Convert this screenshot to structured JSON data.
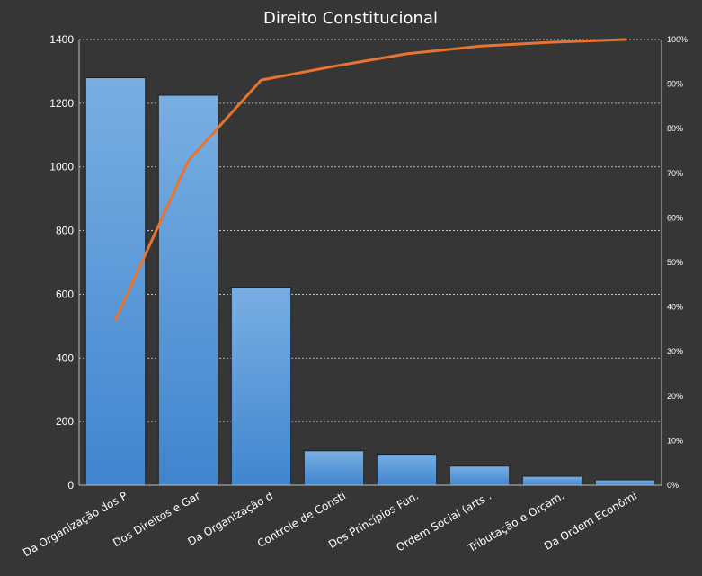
{
  "chart_data": {
    "type": "bar",
    "title": "Direito Constitucional",
    "categories": [
      "Da Organização dos P",
      "Dos Direitos e Gar",
      "Da Organização d",
      "Controle de Consti",
      "Dos Princípios Fun.",
      "Ordem Social (arts .",
      "Tributação e Orçam.",
      "Da Ordem Econômi"
    ],
    "series": [
      {
        "type": "bar",
        "values": [
          1280,
          1225,
          622,
          108,
          97,
          60,
          28,
          17
        ],
        "color": "#5b9bd5"
      },
      {
        "type": "line",
        "axis": "secondary",
        "values": [
          0.372,
          0.728,
          0.909,
          0.94,
          0.968,
          0.985,
          0.994,
          1.0
        ],
        "color": "#e8742f"
      }
    ],
    "ylim": [
      0,
      1400
    ],
    "yticks": [
      "0",
      "200",
      "400",
      "600",
      "800",
      "1000",
      "1200",
      "1400"
    ],
    "y2lim": [
      0,
      1
    ],
    "y2ticks": [
      "0%",
      "10%",
      "20%",
      "30%",
      "40%",
      "50%",
      "60%",
      "70%",
      "80%",
      "90%",
      "100%"
    ],
    "grid": true,
    "legend": "none"
  }
}
